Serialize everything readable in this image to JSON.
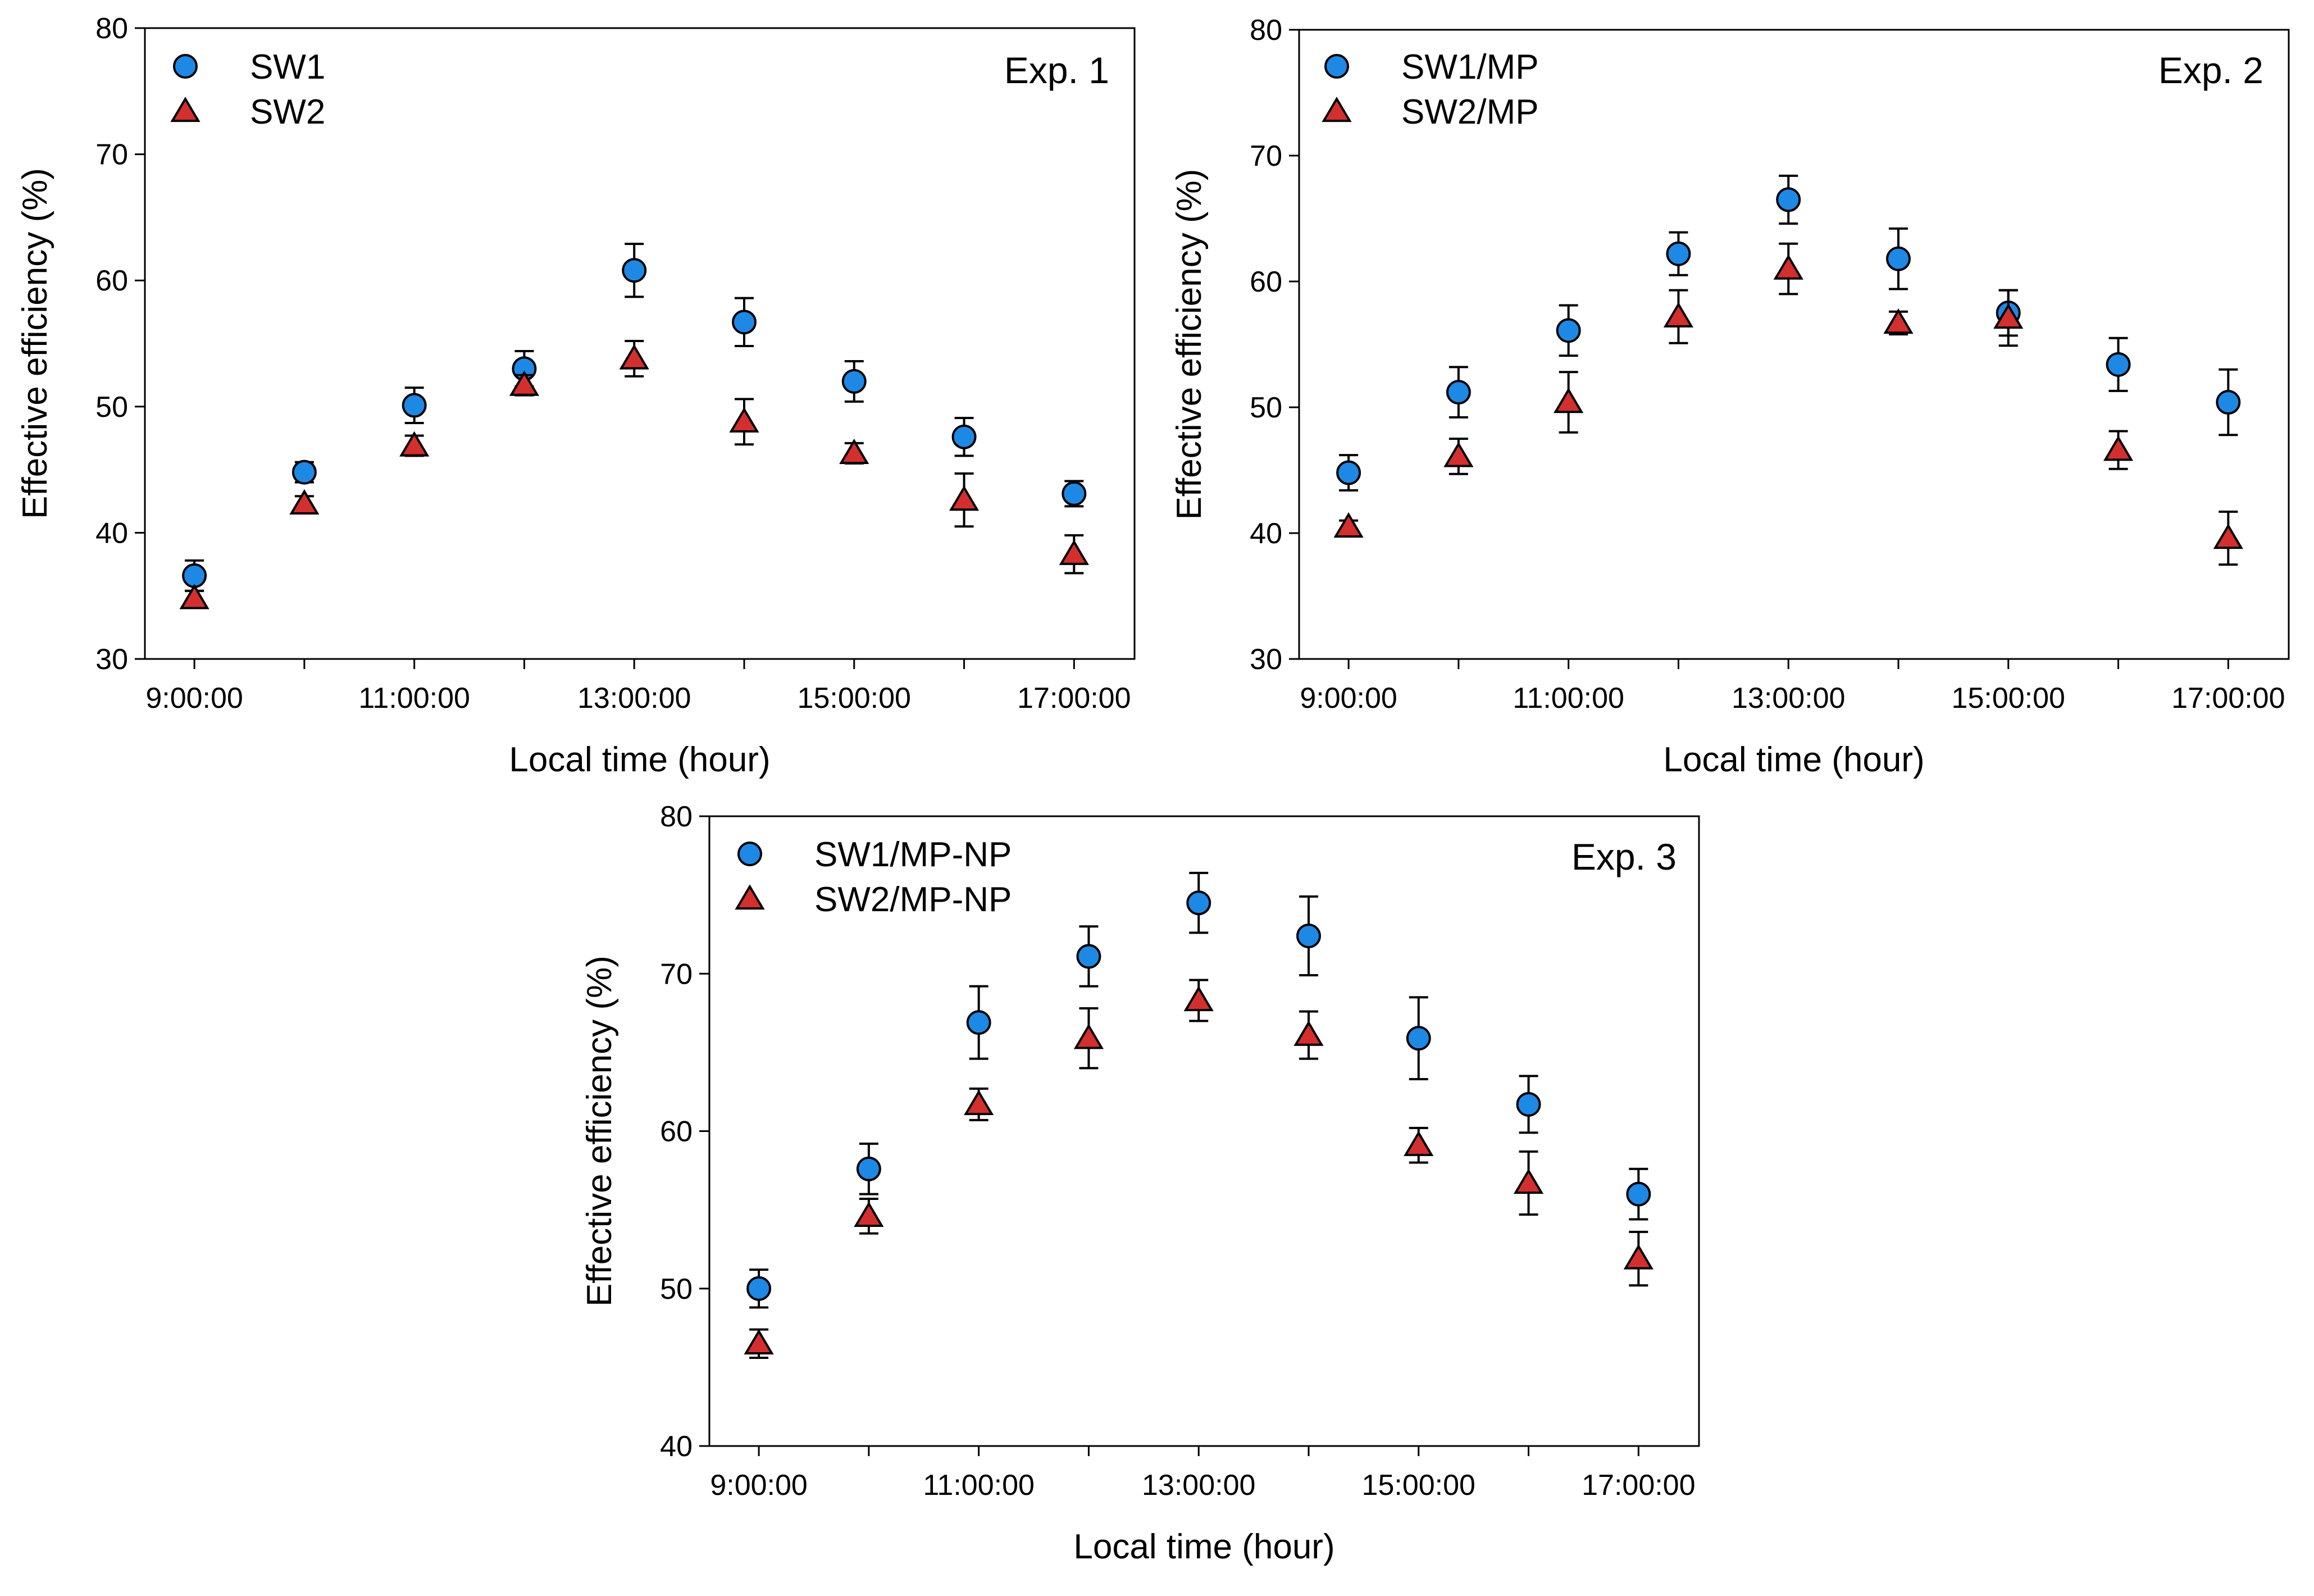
{
  "colors": {
    "series1": "#1E88E5",
    "series2": "#D32F2F",
    "axis": "#000000",
    "background": "#FFFFFF"
  },
  "chart_data": [
    {
      "type": "scatter",
      "panel_label": "Exp. 1",
      "xlabel": "Local time (hour)",
      "ylabel": "Effective efficiency (%)",
      "x": [
        9,
        10,
        11,
        12,
        13,
        14,
        15,
        16,
        17
      ],
      "xlim": [
        8.55,
        17.55
      ],
      "ylim": [
        30,
        80
      ],
      "yticks": [
        30,
        40,
        50,
        60,
        70,
        80
      ],
      "xticks": [
        9,
        11,
        13,
        15,
        17
      ],
      "xtick_labels": [
        "9:00:00",
        "11:00:00",
        "13:00:00",
        "15:00:00",
        "17:00:00"
      ],
      "legend_position": "top-left",
      "series": [
        {
          "name": "SW1",
          "marker": "circle",
          "values": [
            36.6,
            44.8,
            50.1,
            53.0,
            60.8,
            56.7,
            52.0,
            47.6,
            43.1
          ],
          "errors": [
            1.2,
            0.8,
            1.4,
            1.4,
            2.1,
            1.9,
            1.6,
            1.5,
            1.0
          ]
        },
        {
          "name": "SW2",
          "marker": "triangle",
          "values": [
            34.8,
            42.3,
            46.9,
            51.7,
            53.8,
            48.8,
            46.3,
            42.6,
            38.3
          ],
          "errors": [
            0.6,
            0.6,
            0.8,
            0.8,
            1.4,
            1.8,
            0.8,
            2.1,
            1.5
          ]
        }
      ]
    },
    {
      "type": "scatter",
      "panel_label": "Exp. 2",
      "xlabel": "Local time (hour)",
      "ylabel": "Effective efficiency (%)",
      "x": [
        9,
        10,
        11,
        12,
        13,
        14,
        15,
        16,
        17
      ],
      "xlim": [
        8.55,
        17.55
      ],
      "ylim": [
        30,
        80
      ],
      "yticks": [
        30,
        40,
        50,
        60,
        70,
        80
      ],
      "xticks": [
        9,
        11,
        13,
        15,
        17
      ],
      "xtick_labels": [
        "9:00:00",
        "11:00:00",
        "13:00:00",
        "15:00:00",
        "17:00:00"
      ],
      "legend_position": "top-left",
      "series": [
        {
          "name": "SW1/MP",
          "marker": "circle",
          "values": [
            44.8,
            51.2,
            56.1,
            62.2,
            66.5,
            61.8,
            57.5,
            53.4,
            50.4
          ],
          "errors": [
            1.4,
            2.0,
            2.0,
            1.7,
            1.9,
            2.4,
            1.8,
            2.1,
            2.6
          ]
        },
        {
          "name": "SW2/MP",
          "marker": "triangle",
          "values": [
            40.5,
            46.1,
            50.4,
            57.2,
            61.0,
            56.7,
            57.1,
            46.6,
            39.6
          ],
          "errors": [
            0.5,
            1.4,
            2.4,
            2.1,
            2.0,
            0.9,
            2.2,
            1.5,
            2.1
          ]
        }
      ]
    },
    {
      "type": "scatter",
      "panel_label": "Exp. 3",
      "xlabel": "Local time (hour)",
      "ylabel": "Effective efficiency (%)",
      "x": [
        9,
        10,
        11,
        12,
        13,
        14,
        15,
        16,
        17
      ],
      "xlim": [
        8.55,
        17.55
      ],
      "ylim": [
        40,
        80
      ],
      "yticks": [
        40,
        50,
        60,
        70,
        80
      ],
      "xticks": [
        9,
        11,
        13,
        15,
        17
      ],
      "xtick_labels": [
        "9:00:00",
        "11:00:00",
        "13:00:00",
        "15:00:00",
        "17:00:00"
      ],
      "legend_position": "top-left",
      "series": [
        {
          "name": "SW1/MP-NP",
          "marker": "circle",
          "values": [
            50.0,
            57.6,
            66.9,
            71.1,
            74.5,
            72.4,
            65.9,
            61.7,
            56.0
          ],
          "errors": [
            1.2,
            1.6,
            2.3,
            1.9,
            1.9,
            2.5,
            2.6,
            1.8,
            1.6
          ]
        },
        {
          "name": "SW2/MP-NP",
          "marker": "triangle",
          "values": [
            46.5,
            54.6,
            61.7,
            65.9,
            68.3,
            66.1,
            59.1,
            56.7,
            51.9
          ],
          "errors": [
            0.9,
            1.1,
            1.0,
            1.9,
            1.3,
            1.5,
            1.1,
            2.0,
            1.7
          ]
        }
      ]
    }
  ]
}
